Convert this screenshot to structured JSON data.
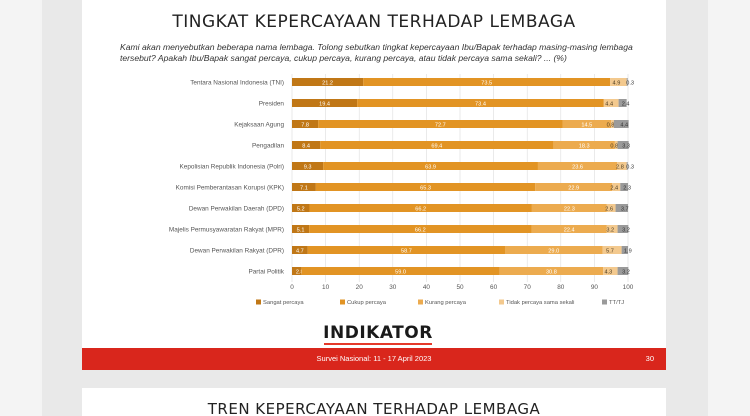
{
  "slide": {
    "title": "TINGKAT KEPERCAYAAN TERHADAP LEMBAGA",
    "question": "Kami akan menyebutkan beberapa nama lembaga. Tolong sebutkan tingkat kepercayaan Ibu/Bapak terhadap masing-masing lembaga tersebut? Apakah Ibu/Bapak sangat percaya, cukup percaya, kurang percaya, atau tidak percaya sama sekali? ... (%)",
    "logo": "INDIKATOR",
    "footer": "Survei Nasional: 11 - 17 April 2023",
    "page_number": "30"
  },
  "next_slide": {
    "title": "TREN KEPERCAYAAN TERHADAP LEMBAGA"
  },
  "colors": {
    "sangat": "#c07716",
    "cukup": "#e29424",
    "kurang": "#ecab4f",
    "tidak": "#f3c98e",
    "tt": "#9a9a9a",
    "footer": "#d9261c"
  },
  "chart_data": {
    "type": "bar",
    "orientation": "horizontal",
    "stacked": true,
    "xlim": [
      0,
      100
    ],
    "x_ticks": [
      "0",
      "10",
      "20",
      "30",
      "40",
      "50",
      "60",
      "70",
      "80",
      "90",
      "100"
    ],
    "categories": [
      "Tentara Nasional Indonesia (TNI)",
      "Presiden",
      "Kejaksaan Agung",
      "Pengadilan",
      "Kepolisian Republik Indonesia (Polri)",
      "Komisi Pemberantasan Korupsi (KPK)",
      "Dewan Perwakilan Daerah (DPD)",
      "Majelis Permusyawaratan Rakyat (MPR)",
      "Dewan Perwakilan Rakyat (DPR)",
      "Partai Politik"
    ],
    "series": [
      {
        "name": "Sangat percaya",
        "values": [
          21.2,
          19.4,
          7.8,
          8.4,
          9.3,
          7.1,
          5.2,
          5.1,
          4.7,
          2.8
        ]
      },
      {
        "name": "Cukup percaya",
        "values": [
          73.5,
          73.4,
          72.7,
          69.4,
          63.9,
          65.3,
          66.2,
          66.2,
          58.7,
          59.0
        ]
      },
      {
        "name": "Kurang percaya",
        "values": [
          null,
          null,
          14.5,
          18.3,
          23.6,
          22.9,
          22.3,
          22.4,
          29.0,
          30.8
        ]
      },
      {
        "name": "Tidak percaya sama sekali",
        "values": [
          4.9,
          4.4,
          0.8,
          0.8,
          2.8,
          2.4,
          2.6,
          3.2,
          5.7,
          4.3
        ]
      },
      {
        "name": "TT/TJ",
        "values": [
          0.3,
          2.4,
          4.4,
          3.3,
          0.3,
          2.3,
          3.7,
          3.2,
          1.9,
          3.2
        ]
      }
    ]
  }
}
